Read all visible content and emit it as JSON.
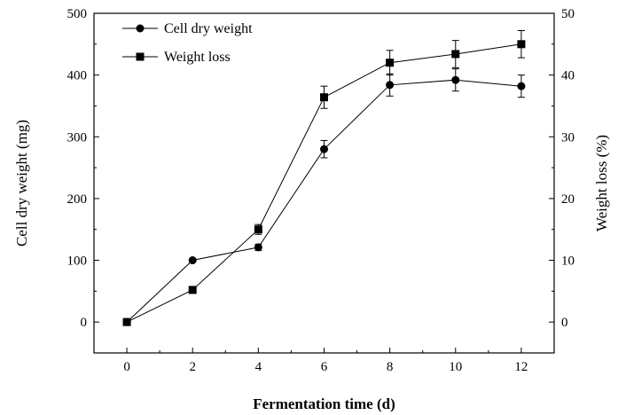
{
  "chart_data": {
    "type": "line",
    "xlabel": "Fermentation time (d)",
    "ylabel": "Cell dry weight (mg)",
    "y2label": "Weight loss (%)",
    "x": [
      0,
      2,
      4,
      6,
      8,
      10,
      12
    ],
    "xticks": [
      "0",
      "2",
      "4",
      "6",
      "8",
      "10",
      "12"
    ],
    "xlim": [
      -1,
      13
    ],
    "ylim": [
      -50,
      500
    ],
    "y2lim": [
      -5,
      50
    ],
    "yticks": [
      "0",
      "100",
      "200",
      "300",
      "400",
      "500"
    ],
    "y2ticks": [
      "0",
      "10",
      "20",
      "30",
      "40",
      "50"
    ],
    "grid": false,
    "legend_position": "top-left",
    "series": [
      {
        "name": "Cell dry weight",
        "axis": "left",
        "marker": "circle",
        "values": [
          0,
          100,
          121,
          280,
          384,
          392,
          382
        ],
        "errors": [
          0,
          0,
          5,
          14,
          18,
          18,
          18
        ]
      },
      {
        "name": "Weight loss",
        "axis": "right",
        "marker": "square",
        "values": [
          0,
          5.2,
          15,
          36.4,
          42,
          43.4,
          45
        ],
        "errors": [
          0,
          0,
          0.8,
          1.8,
          2,
          2.2,
          2.2
        ]
      }
    ]
  }
}
